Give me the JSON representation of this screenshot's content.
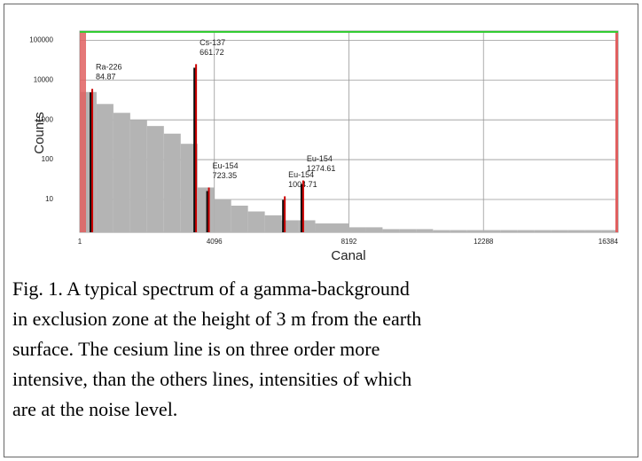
{
  "chart_data": {
    "type": "histogram",
    "xlabel": "Canal",
    "ylabel": "Counts",
    "log_y": true,
    "grid": true,
    "color": "#b4b4b4",
    "bins": [
      0,
      512,
      1024,
      1536,
      2048,
      2560,
      3072,
      3584,
      4096,
      4608,
      5120,
      5632,
      6144,
      6656,
      7168,
      7680,
      8192,
      8704,
      9216,
      9728,
      10240,
      10752,
      11264,
      11776,
      12288,
      12800,
      13312,
      13824,
      14336,
      14848,
      15360,
      15872,
      16384
    ],
    "values": [
      5000,
      2500,
      1500,
      1000,
      700,
      450,
      250,
      20,
      10,
      7,
      5,
      4,
      3,
      3,
      2.5,
      2.5,
      2,
      2,
      1.8,
      1.8,
      1.8,
      1.7,
      1.7,
      1.7,
      1.7,
      1.7,
      1.7,
      1.7,
      1.7,
      1.7,
      1.7,
      1.7
    ],
    "peaks": [
      {
        "label": "Ra-226",
        "energy": 84.87,
        "channel": 380,
        "counts": 6000,
        "color": "#cc0000"
      },
      {
        "label": "Cs-137",
        "energy": 661.72,
        "channel": 3540,
        "counts": 25000,
        "color": "#cc0000"
      },
      {
        "label": "Eu-154",
        "energy": 723.35,
        "channel": 3930,
        "counts": 20,
        "color": "#cc0000"
      },
      {
        "label": "Eu-154",
        "energy": 1004.71,
        "channel": 6240,
        "counts": 12,
        "color": "#cc0000"
      },
      {
        "label": "Eu-154",
        "energy": 1274.61,
        "channel": 6800,
        "counts": 30,
        "color": "#cc0000"
      }
    ],
    "xlim": [
      1,
      16384
    ],
    "ylim": [
      1.5,
      170000
    ],
    "xticks": [
      1,
      4096,
      8192,
      12288,
      16384
    ],
    "yticks": [
      10,
      100,
      1000,
      10000,
      100000
    ]
  },
  "caption": [
    "Fig. 1. A typical spectrum of a gamma-background",
    "in exclusion zone at the height of 3 m from the earth",
    "surface. The cesium line is on three order more",
    "intensive, than the others lines, intensities of which",
    "are at the noise level."
  ]
}
